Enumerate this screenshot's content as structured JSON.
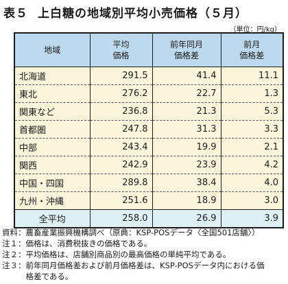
{
  "title": {
    "number": "表５",
    "text": "上白糖の地域別平均小売価格（５月）"
  },
  "unit": "（単位：円/kg）",
  "headers": {
    "region": "地域",
    "price": [
      "平均",
      "価格"
    ],
    "yoy": [
      "前年同月",
      "価格差"
    ],
    "mom": [
      "前月",
      "価格差"
    ]
  },
  "rows": [
    {
      "region": "北海道",
      "price": "291.5",
      "yoy": "41.4",
      "mom": "11.1"
    },
    {
      "region": "東北",
      "price": "276.2",
      "yoy": "22.7",
      "mom": "1.3"
    },
    {
      "region": "関東など",
      "price": "236.8",
      "yoy": "21.3",
      "mom": "5.3"
    },
    {
      "region": "首都圏",
      "price": "247.8",
      "yoy": "31.3",
      "mom": "3.3"
    },
    {
      "region": "中部",
      "price": "243.4",
      "yoy": "19.9",
      "mom": "2.1"
    },
    {
      "region": "関西",
      "price": "242.9",
      "yoy": "23.9",
      "mom": "4.2"
    },
    {
      "region": "中国・四国",
      "price": "289.8",
      "yoy": "38.4",
      "mom": "4.0"
    },
    {
      "region": "九州・沖縄",
      "price": "251.6",
      "yoy": "18.9",
      "mom": "3.0"
    }
  ],
  "total": {
    "region": "全平均",
    "price": "258.0",
    "yoy": "26.9",
    "mom": "3.9"
  },
  "notes": [
    {
      "label": "資料：",
      "text": "農畜産業振興機構調べ（原典：KSP-POSデータ〈全国501店舗〉）"
    },
    {
      "label": "注１：",
      "text": "価格は、消費税抜きの価格である。"
    },
    {
      "label": "注２：",
      "text": "平均価格は、店舗別商品別の最高価格の単純平均である。"
    },
    {
      "label": "注３：",
      "text": "前年同月価格差および前月価格差は、KSP-POSデータ内における価格差である。"
    }
  ]
}
